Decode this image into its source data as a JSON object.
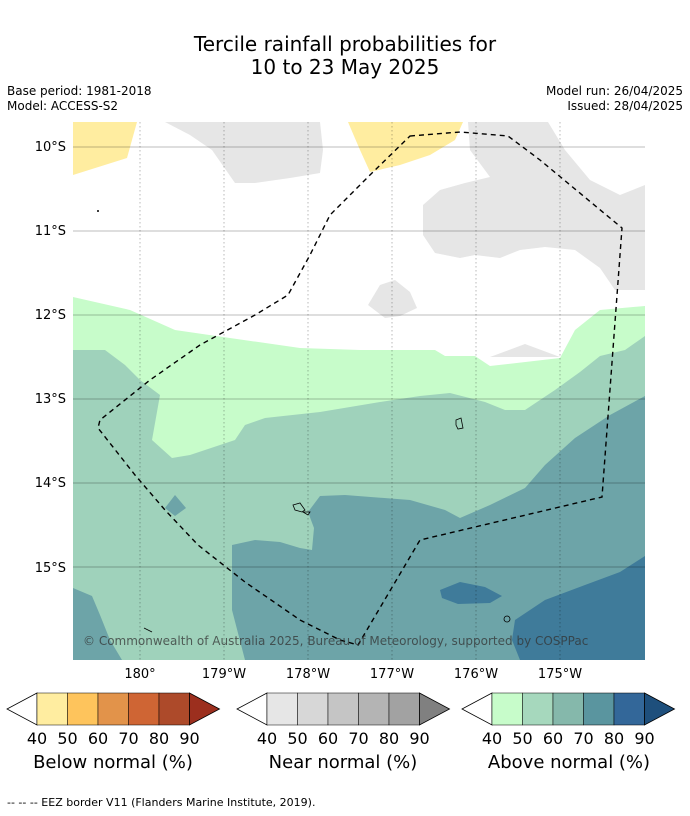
{
  "title": {
    "line1": "Tercile rainfall probabilities for",
    "line2": "10 to 23 May 2025"
  },
  "meta": {
    "base_period": "Base period: 1981-2018",
    "model": "Model: ACCESS-S2",
    "model_run": "Model run: 26/04/2025",
    "issued": "Issued: 28/04/2025"
  },
  "map": {
    "lat_labels": [
      "10°S",
      "11°S",
      "12°S",
      "13°S",
      "14°S",
      "15°S"
    ],
    "lon_labels": [
      "180°",
      "179°W",
      "178°W",
      "177°W",
      "176°W",
      "175°W"
    ],
    "copyright": "© Commonwealth of Australia 2025, Bureau of Meteorology, supported by COSPPac",
    "colors": {
      "below_40": "#ffeda0",
      "near_40": "#e6e6e6",
      "above_40": "#c7fcca",
      "above_50": "#9fd2bb",
      "above_60": "#6da4a8",
      "above_70": "#3f7b9a"
    }
  },
  "legend": {
    "ticks": [
      "40",
      "50",
      "60",
      "70",
      "80",
      "90"
    ],
    "below": {
      "label": "Below normal (%)",
      "colors": [
        "#ffeda0",
        "#fec45c",
        "#e2934a",
        "#cf6534",
        "#ad4a2a",
        "#9c2f1e"
      ]
    },
    "near": {
      "label": "Near normal (%)",
      "colors": [
        "#e6e6e6",
        "#d7d7d7",
        "#c5c5c5",
        "#b4b4b4",
        "#a2a2a2",
        "#808080"
      ]
    },
    "above": {
      "label": "Above normal (%)",
      "colors": [
        "#c7fcca",
        "#a6d8bd",
        "#85b8ab",
        "#5a959f",
        "#336799",
        "#1e4f7c"
      ]
    }
  },
  "footnote": "--  --  -- EEZ border V11 (Flanders Marine Institute, 2019)."
}
